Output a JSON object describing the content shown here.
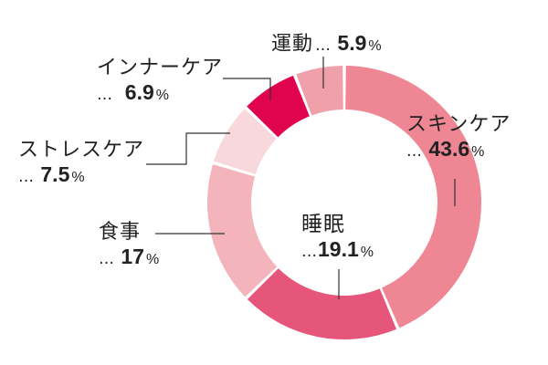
{
  "chart_data": {
    "type": "donut",
    "slices": [
      {
        "label": "スキンケア",
        "value": 43.6,
        "value_text": "43.6",
        "color": "#ef8694"
      },
      {
        "label": "睡眠",
        "value": 19.1,
        "value_text": "19.1",
        "color": "#e6557a"
      },
      {
        "label": "食事",
        "value": 17,
        "value_text": "17",
        "color": "#f3b4bc"
      },
      {
        "label": "ストレスケア",
        "value": 7.5,
        "value_text": "7.5",
        "color": "#f8d8dc"
      },
      {
        "label": "インナーケア",
        "value": 6.9,
        "value_text": "6.9",
        "color": "#e0044f"
      },
      {
        "label": "運動",
        "value": 5.9,
        "value_text": "5.9",
        "color": "#f0a0aa"
      }
    ],
    "prefix": "…",
    "unit": "%"
  }
}
